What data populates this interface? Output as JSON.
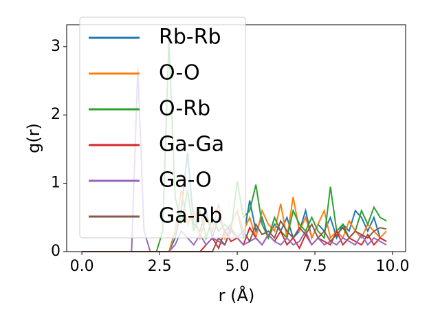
{
  "chart_data": {
    "type": "line",
    "xlabel": "r (Å)",
    "ylabel": "g(r)",
    "x": [
      0.0,
      0.2,
      0.4,
      0.6,
      0.8,
      1.0,
      1.2,
      1.4,
      1.6,
      1.8,
      2.0,
      2.2,
      2.4,
      2.6,
      2.8,
      3.0,
      3.2,
      3.4,
      3.6,
      3.8,
      4.0,
      4.2,
      4.4,
      4.6,
      4.8,
      5.0,
      5.2,
      5.4,
      5.6,
      5.8,
      6.0,
      6.2,
      6.4,
      6.6,
      6.8,
      7.0,
      7.2,
      7.4,
      7.6,
      7.8,
      8.0,
      8.2,
      8.4,
      8.6,
      8.8,
      9.0,
      9.2,
      9.4,
      9.6,
      9.8
    ],
    "series": [
      {
        "name": "Rb-Rb",
        "color": "#1f77b4",
        "values": [
          0,
          0,
          0,
          0,
          0,
          0,
          0,
          0,
          0,
          0,
          0,
          0,
          0,
          0,
          0,
          0.2,
          0.6,
          1.45,
          0.4,
          0.3,
          0.6,
          0.2,
          0.5,
          0.3,
          0.4,
          0.6,
          0.2,
          0.75,
          0.3,
          0.5,
          0.2,
          0.4,
          0.3,
          0.5,
          0.2,
          0.3,
          0.6,
          0.2,
          0.4,
          0.3,
          0.5,
          0.2,
          0.4,
          0.3,
          0.6,
          0.5,
          0.3,
          0.5,
          0.2,
          0.15
        ]
      },
      {
        "name": "O-O",
        "color": "#ff7f0e",
        "values": [
          0,
          0,
          0,
          0,
          0,
          0,
          0,
          0,
          0,
          0,
          0,
          0,
          0,
          0,
          0,
          0.3,
          0.9,
          0.4,
          0.6,
          0.2,
          0.5,
          0.3,
          0.7,
          0.2,
          0.4,
          0.6,
          0.3,
          0.5,
          0.2,
          0.6,
          0.4,
          0.3,
          0.7,
          0.2,
          0.8,
          0.3,
          0.5,
          0.2,
          0.4,
          0.6,
          0.2,
          0.3,
          0.2,
          0.45,
          0.3,
          0.2,
          0.4,
          0.3,
          0.2,
          0.3
        ]
      },
      {
        "name": "O-Rb",
        "color": "#2ca02c",
        "values": [
          0,
          0,
          0,
          0,
          0,
          0,
          0,
          0,
          0,
          0,
          0,
          0,
          0,
          0.3,
          3.1,
          0.8,
          0.4,
          0.9,
          0.3,
          0.6,
          0.2,
          0.5,
          0.3,
          0.4,
          0.3,
          1.03,
          0.5,
          0.6,
          0.98,
          0.4,
          0.2,
          0.5,
          0.3,
          0.2,
          0.6,
          0.4,
          0.3,
          0.5,
          0.3,
          0.2,
          0.95,
          0.3,
          0.4,
          0.2,
          0.3,
          0.6,
          0.4,
          0.65,
          0.5,
          0.45
        ]
      },
      {
        "name": "Ga-Ga",
        "color": "#d62728",
        "values": [
          0,
          0,
          0,
          0,
          0,
          0,
          0,
          0,
          0,
          0,
          0,
          0,
          0,
          0,
          0,
          0,
          0,
          0,
          0,
          0,
          0.1,
          0.2,
          0.05,
          0.3,
          0.15,
          0.2,
          0.1,
          0.35,
          0.2,
          0.1,
          0.25,
          0.15,
          0.3,
          0.1,
          0.2,
          0.05,
          0.25,
          0.1,
          0.2,
          0.15,
          0.1,
          0.3,
          0.1,
          0.2,
          0.15,
          0.1,
          0.25,
          0.1,
          0.2,
          0.15
        ]
      },
      {
        "name": "Ga-O",
        "color": "#9467bd",
        "values": [
          0,
          0,
          0,
          0,
          0,
          0,
          0,
          0,
          0,
          2.68,
          0.3,
          0,
          0,
          0,
          0,
          0.1,
          0.3,
          0.2,
          0.1,
          0.25,
          0.1,
          0.2,
          0.15,
          0.1,
          0.3,
          0.2,
          0.1,
          0.15,
          0.2,
          0.1,
          0.25,
          0.15,
          0.1,
          0.2,
          0.1,
          0.15,
          0.3,
          0.1,
          0.2,
          0.1,
          0.15,
          0.1,
          0.2,
          0.15,
          0.1,
          0.25,
          0.1,
          0.2,
          0.15,
          0.1
        ]
      },
      {
        "name": "Ga-Rb",
        "color": "#8c564b",
        "values": [
          0,
          0,
          0,
          0,
          0,
          0,
          0,
          0,
          0,
          0,
          0,
          0,
          0,
          0,
          0,
          0,
          0,
          0,
          0,
          0,
          0,
          0,
          0.2,
          0.1,
          0.35,
          0.2,
          0.3,
          0.15,
          0.4,
          0.25,
          0.3,
          0.2,
          0.45,
          0.3,
          0.2,
          0.35,
          0.25,
          0.4,
          0.2,
          0.3,
          0.15,
          0.25,
          0.35,
          0.2,
          0.3,
          0.25,
          0.2,
          0.3,
          0.35,
          0.33
        ]
      }
    ],
    "xlim": [
      -0.49,
      10.42
    ],
    "ylim": [
      0,
      3.32
    ],
    "xticks": [
      {
        "value": 0,
        "label": "0.0"
      },
      {
        "value": 2.5,
        "label": "2.5"
      },
      {
        "value": 5,
        "label": "5.0"
      },
      {
        "value": 7.5,
        "label": "7.5"
      },
      {
        "value": 10,
        "label": "10.0"
      }
    ],
    "yticks": [
      0,
      1,
      2,
      3
    ],
    "legend": "upper left"
  }
}
